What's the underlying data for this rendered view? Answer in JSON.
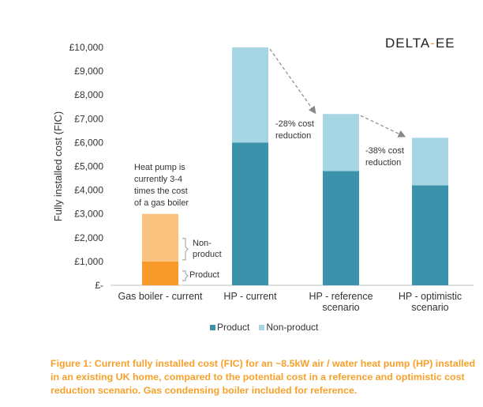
{
  "logo": {
    "left": "DELTA",
    "dash": "-",
    "right": "EE"
  },
  "chart_data": {
    "type": "bar",
    "stacked": true,
    "ylabel": "Fully installed cost (FIC)",
    "ylim": [
      0,
      10000
    ],
    "yticks": [
      "£-",
      "£1,000",
      "£2,000",
      "£3,000",
      "£4,000",
      "£5,000",
      "£6,000",
      "£7,000",
      "£8,000",
      "£9,000",
      "£10,000"
    ],
    "categories": [
      [
        "Gas boiler - current"
      ],
      [
        "HP - current"
      ],
      [
        "HP - reference",
        "scenario"
      ],
      [
        "HP - optimistic",
        "scenario"
      ]
    ],
    "series": [
      {
        "name": "Product",
        "values": [
          1000,
          6000,
          4800,
          4200
        ]
      },
      {
        "name": "Non-product",
        "values": [
          2000,
          4000,
          2400,
          2000
        ]
      }
    ],
    "gas_colors": {
      "Product": "#F79A2B",
      "Non-product": "#F9C27E"
    },
    "hp_colors": {
      "Product": "#3A93AA",
      "Non-product": "#A6D5E3"
    },
    "legend": {
      "position": "bottom",
      "items": [
        {
          "label": "Product",
          "color": "#3A93AA"
        },
        {
          "label": "Non-product",
          "color": "#A6D5E3"
        }
      ]
    },
    "grid": false,
    "annotations": {
      "gas_note": [
        "Heat pump is",
        "currently 3-4",
        "times the cost",
        "of a gas boiler"
      ],
      "brace_nonproduct": [
        "Non-",
        "product"
      ],
      "brace_product": "Product",
      "reduction_ref": [
        "-28% cost",
        "reduction"
      ],
      "reduction_opt": [
        "-38% cost",
        "reduction"
      ]
    }
  },
  "caption": "Figure 1: Current fully installed cost (FIC) for an ~8.5kW air / water heat pump (HP) installed in an existing UK home, compared to the potential cost in a reference and optimistic cost reduction scenario. Gas condensing boiler included for reference."
}
